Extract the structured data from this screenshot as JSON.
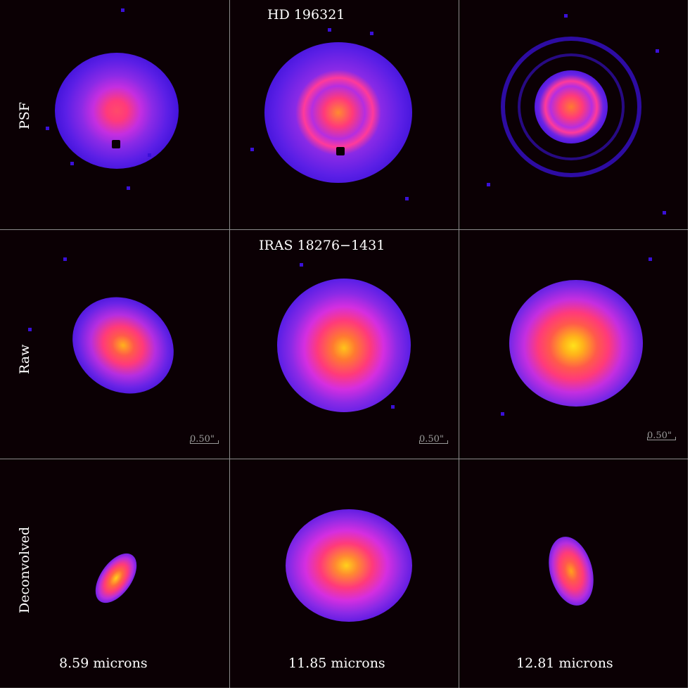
{
  "titles": {
    "psf_target": "HD 196321",
    "raw_target": "IRAS 18276−1431"
  },
  "rows": [
    {
      "label": "PSF"
    },
    {
      "label": "Raw"
    },
    {
      "label": "Deconvolved"
    }
  ],
  "columns": [
    {
      "label": "8.59 microns"
    },
    {
      "label": "11.85 microns"
    },
    {
      "label": "12.81 microns"
    }
  ],
  "scalebar": {
    "label": "0.50\""
  },
  "colors": {
    "background": "#0b0004",
    "gridline": "#8c8c8c",
    "halo": "#3a10d8",
    "mid": "#a32ee0",
    "inner": "#ff3a7a",
    "core": "#ffd21a",
    "text": "#ffffff"
  }
}
